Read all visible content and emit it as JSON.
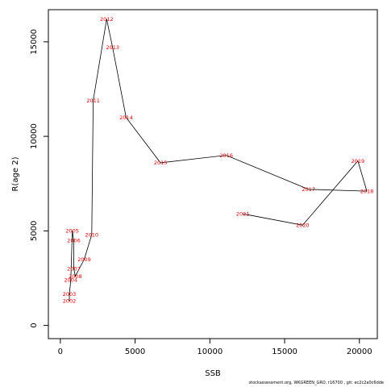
{
  "chart_data": {
    "type": "line",
    "xlabel": "SSB",
    "ylabel": "R(age 2)",
    "xlim": [
      -800,
      21200
    ],
    "ylim": [
      -700,
      16700
    ],
    "xticks": [
      "0",
      "5000",
      "10000",
      "15000",
      "20000"
    ],
    "xtick_values": [
      0,
      5000,
      10000,
      15000,
      20000
    ],
    "yticks": [
      "0",
      "5000",
      "10000",
      "15000"
    ],
    "ytick_values": [
      0,
      5000,
      10000,
      15000
    ],
    "grid": false,
    "line_color": "#000000",
    "label_color": "#e00000",
    "points": [
      {
        "label": "2002",
        "x": 600,
        "y": 1300
      },
      {
        "label": "2003",
        "x": 600,
        "y": 1650
      },
      {
        "label": "2004",
        "x": 700,
        "y": 2400
      },
      {
        "label": "2005",
        "x": 800,
        "y": 5000
      },
      {
        "label": "2006",
        "x": 900,
        "y": 4500
      },
      {
        "label": "2007",
        "x": 900,
        "y": 3000
      },
      {
        "label": "2008",
        "x": 1000,
        "y": 2600
      },
      {
        "label": "2009",
        "x": 1600,
        "y": 3500
      },
      {
        "label": "2010",
        "x": 2100,
        "y": 4800
      },
      {
        "label": "2011",
        "x": 2200,
        "y": 11900
      },
      {
        "label": "2012",
        "x": 3100,
        "y": 16200
      },
      {
        "label": "2013",
        "x": 3500,
        "y": 14700
      },
      {
        "label": "2014",
        "x": 4400,
        "y": 11000
      },
      {
        "label": "2015",
        "x": 6700,
        "y": 8600
      },
      {
        "label": "2016",
        "x": 11100,
        "y": 9000
      },
      {
        "label": "2017",
        "x": 16600,
        "y": 7200
      },
      {
        "label": "2018",
        "x": 20500,
        "y": 7100
      },
      {
        "label": "2019",
        "x": 19900,
        "y": 8700
      },
      {
        "label": "2020",
        "x": 16200,
        "y": 5300
      },
      {
        "label": "2021",
        "x": 12200,
        "y": 5900
      }
    ]
  },
  "footer": {
    "text": "stockassessment.org, WKGREEN_GRO, r16700 , git: ec2c2a0c6dde"
  }
}
